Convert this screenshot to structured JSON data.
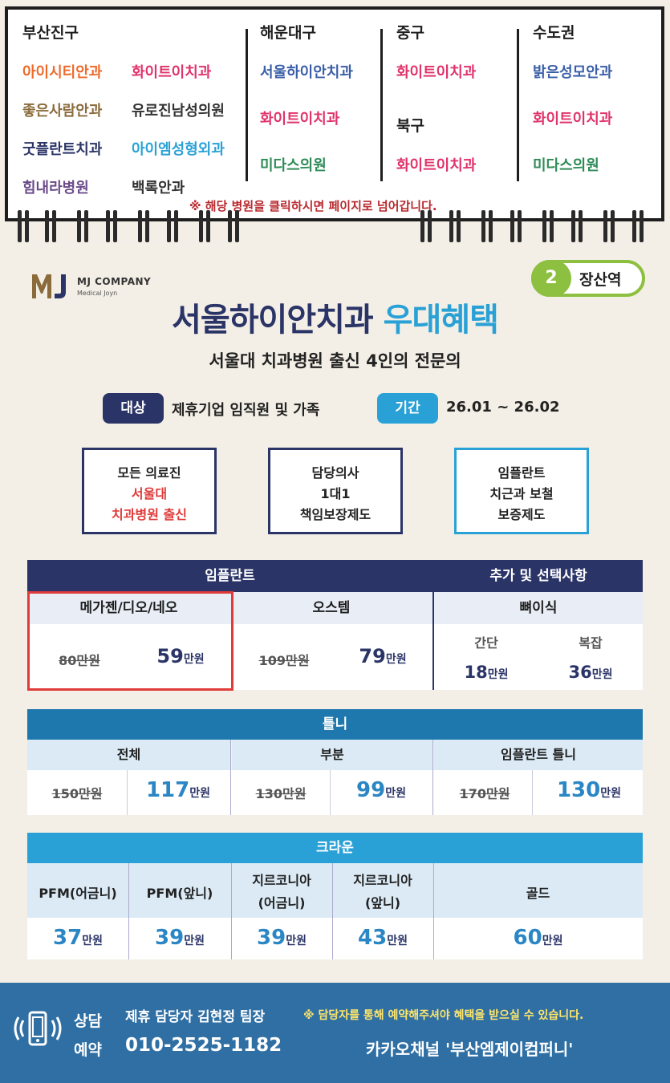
{
  "nav": {
    "cols": [
      {
        "title": "부산진구",
        "items": [
          "아이시티안과",
          "화이트이치과",
          "좋은사람안과",
          "유로진남성의원",
          "굿플란트치과",
          "아이엠성형외과",
          "힘내라병원",
          "백록안과"
        ]
      },
      {
        "title": "해운대구",
        "items": [
          "서울하이안치과",
          "화이트이치과",
          "미다스의원"
        ]
      },
      {
        "title": "중구",
        "items": [
          "화이트이치과"
        ]
      },
      {
        "title": "북구",
        "items": [
          "화이트이치과"
        ]
      },
      {
        "title": "수도권",
        "items": [
          "밝은성모안과",
          "화이트이치과",
          "미다스의원"
        ]
      }
    ],
    "notice": "※ 해당 병원을 클릭하시면 페이지로 넘어갑니다."
  },
  "header": {
    "logo_main": "MJ COMPANY",
    "logo_sub": "Medical Joyn",
    "station_num": "2",
    "station_name": "장산역",
    "title_main": "서울하이안치과",
    "title_accent": "우대혜택",
    "subtitle": "서울대 치과병원 출신 4인의 전문의",
    "target_label": "대상",
    "target_text": "제휴기업 임직원 및 가족",
    "period_label": "기간",
    "period_text": "26.01 ~ 26.02"
  },
  "features": [
    {
      "l1": "모든 의료진",
      "l2": "서울대",
      "l3": "치과병원 출신"
    },
    {
      "l1": "담당의사",
      "l2": "1대1",
      "l3": "책임보장제도"
    },
    {
      "l1": "임플란트",
      "l2": "치근과 보철",
      "l3": "보증제도"
    }
  ],
  "implant": {
    "header": "임플란트",
    "extra_header": "추가 및 선택사항",
    "col1": {
      "name": "메가젠/디오/네오",
      "old": "80만원",
      "new": "59",
      "unit": "만원"
    },
    "col2": {
      "name": "오스템",
      "old": "109만원",
      "new": "79",
      "unit": "만원"
    },
    "col3": {
      "name": "뼈이식",
      "a_label": "간단",
      "a_price": "18",
      "b_label": "복잡",
      "b_price": "36",
      "unit": "만원"
    }
  },
  "denture": {
    "header": "틀니",
    "cols": [
      {
        "name": "전체",
        "old": "150만원",
        "new": "117",
        "unit": "만원"
      },
      {
        "name": "부분",
        "old": "130만원",
        "new": "99",
        "unit": "만원"
      },
      {
        "name": "임플란트 틀니",
        "old": "170만원",
        "new": "130",
        "unit": "만원"
      }
    ]
  },
  "crown": {
    "header": "크라운",
    "cols": [
      {
        "n1": "PFM(어금니)",
        "n2": "",
        "price": "37",
        "unit": "만원"
      },
      {
        "n1": "PFM(앞니)",
        "n2": "",
        "price": "39",
        "unit": "만원"
      },
      {
        "n1": "지르코니아",
        "n2": "(어금니)",
        "price": "39",
        "unit": "만원"
      },
      {
        "n1": "지르코니아",
        "n2": "(앞니)",
        "price": "43",
        "unit": "만원"
      },
      {
        "n1": "골드",
        "n2": "",
        "price": "60",
        "unit": "만원"
      }
    ]
  },
  "footer": {
    "consult1": "상담",
    "consult2": "예약",
    "manager": "제휴 담당자 김현정 팀장",
    "phone": "010-2525-1182",
    "note": "※ 담당자를 통해 예약해주셔야 혜택을 받으실 수 있습니다.",
    "kakao": "카카오채널 '부산엠제이컴퍼니'"
  },
  "colors": {
    "navy": "#2b3467",
    "sky": "#2aa1d6",
    "red": "#e03a3a",
    "green": "#8dc040"
  }
}
